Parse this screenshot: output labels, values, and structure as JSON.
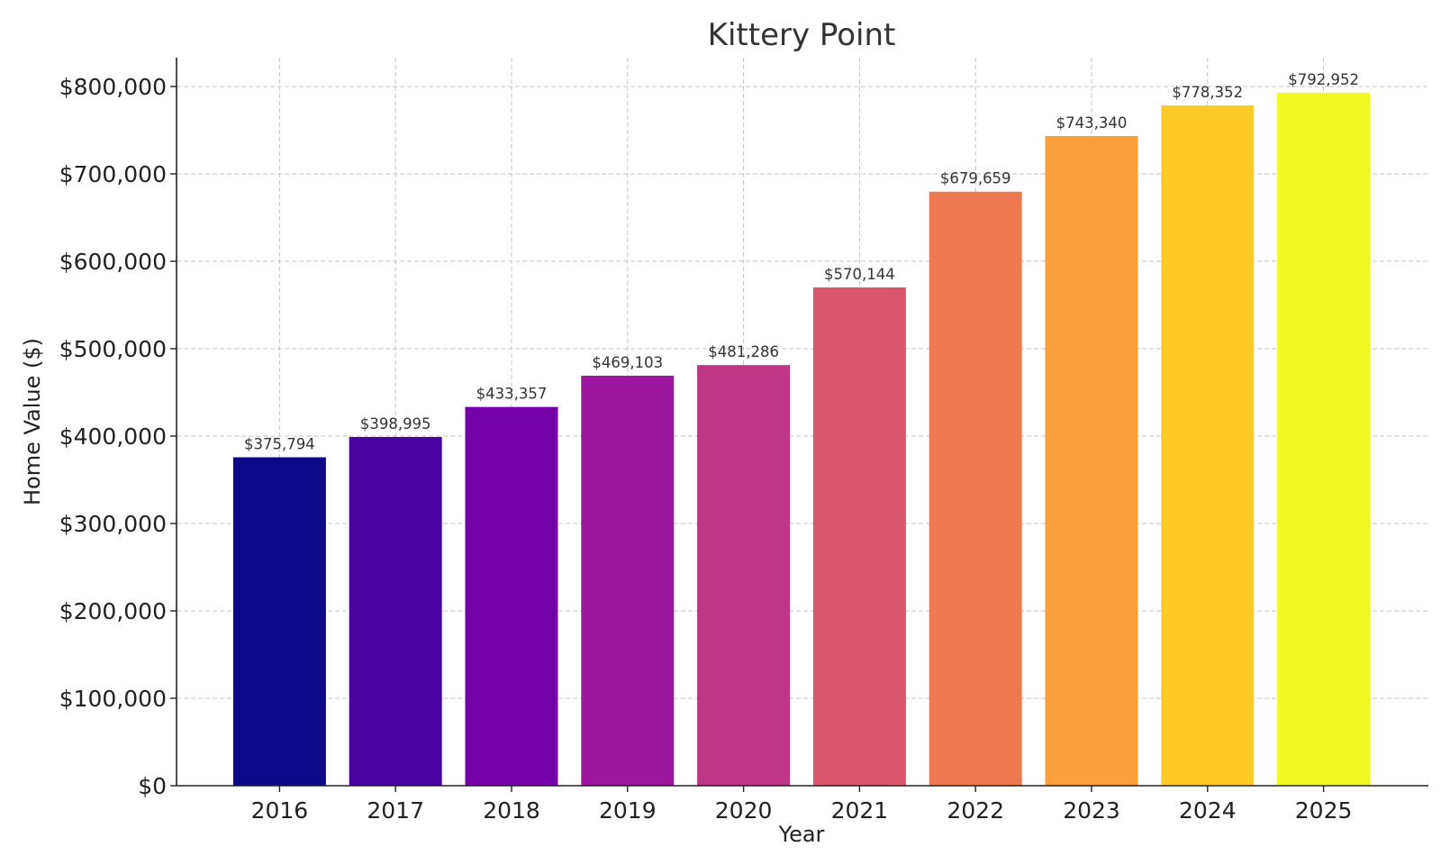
{
  "chart_data": {
    "type": "bar",
    "title": "Kittery Point",
    "xlabel": "Year",
    "ylabel": "Home Value ($)",
    "categories": [
      "2016",
      "2017",
      "2018",
      "2019",
      "2020",
      "2021",
      "2022",
      "2023",
      "2024",
      "2025"
    ],
    "values": [
      375794,
      398995,
      433357,
      469103,
      481286,
      570144,
      679659,
      743340,
      778352,
      792952
    ],
    "value_labels": [
      "$375,794",
      "$398,995",
      "$433,357",
      "$469,103",
      "$481,286",
      "$570,144",
      "$679,659",
      "$743,340",
      "$778,352",
      "$792,952"
    ],
    "bar_colors": [
      "#0d0887",
      "#46039f",
      "#7201a8",
      "#9c179e",
      "#bd3786",
      "#d8576b",
      "#ed7953",
      "#fb9f3a",
      "#fdca26",
      "#f0f921"
    ],
    "ylim": [
      0,
      833000
    ],
    "yticks": [
      0,
      100000,
      200000,
      300000,
      400000,
      500000,
      600000,
      700000,
      800000
    ],
    "ytick_labels": [
      "$0",
      "$100,000",
      "$200,000",
      "$300,000",
      "$400,000",
      "$500,000",
      "$600,000",
      "$700,000",
      "$800,000"
    ],
    "grid": true,
    "legend": "none"
  }
}
